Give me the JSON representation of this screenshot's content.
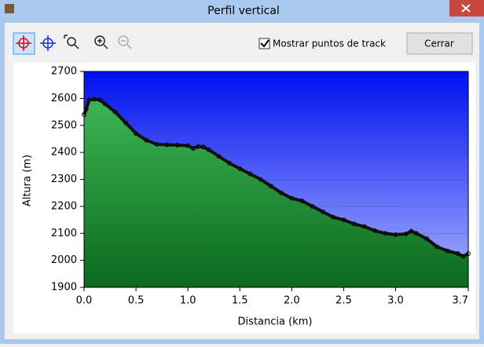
{
  "window": {
    "title": "Perfil vertical"
  },
  "toolbar": {
    "checkbox_label": "Mostrar puntos de track",
    "checked": true,
    "button": "Cerrar"
  },
  "chart_data": {
    "type": "line",
    "xlabel": "Distancia  (km)",
    "ylabel": "Altura (m)",
    "x": [
      0,
      0.02,
      0.05,
      0.1,
      0.15,
      0.2,
      0.3,
      0.4,
      0.5,
      0.6,
      0.7,
      0.8,
      0.9,
      1.0,
      1.05,
      1.1,
      1.15,
      1.2,
      1.3,
      1.4,
      1.5,
      1.6,
      1.7,
      1.8,
      1.9,
      2.0,
      2.1,
      2.2,
      2.3,
      2.4,
      2.5,
      2.6,
      2.7,
      2.8,
      2.9,
      3.0,
      3.1,
      3.15,
      3.2,
      3.3,
      3.4,
      3.5,
      3.6,
      3.65,
      3.7
    ],
    "values": [
      2540,
      2560,
      2595,
      2597,
      2595,
      2580,
      2550,
      2510,
      2470,
      2445,
      2430,
      2428,
      2427,
      2425,
      2415,
      2422,
      2420,
      2410,
      2385,
      2360,
      2340,
      2320,
      2300,
      2275,
      2250,
      2230,
      2220,
      2200,
      2180,
      2160,
      2150,
      2135,
      2125,
      2110,
      2100,
      2095,
      2098,
      2108,
      2100,
      2080,
      2050,
      2035,
      2025,
      2015,
      2025
    ],
    "color": "#111111",
    "xlim": [
      0,
      3.7
    ],
    "ylim": [
      1900,
      2700
    ],
    "xticks": [
      {
        "value": 0,
        "label": "0.0"
      },
      0.5,
      {
        "value": 1,
        "label": "1.0"
      },
      1.5,
      {
        "value": 2,
        "label": "2.0"
      },
      2.5,
      {
        "value": 3,
        "label": "3.0"
      },
      3.7
    ],
    "yticks": [
      1900,
      2000,
      2100,
      2200,
      2300,
      2400,
      2500,
      2600,
      2700
    ],
    "grid": true
  }
}
